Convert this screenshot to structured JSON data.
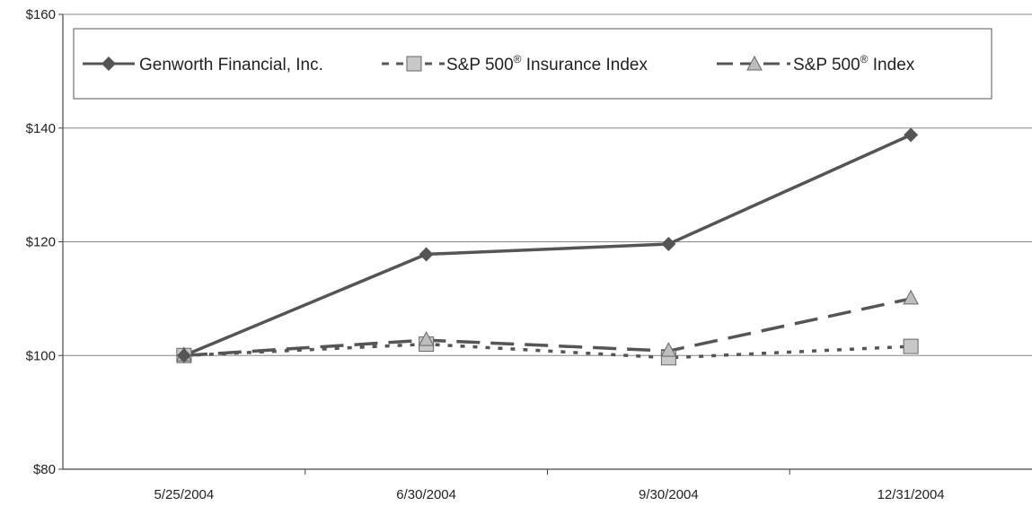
{
  "chart_data": {
    "type": "line",
    "title": "",
    "xlabel": "",
    "ylabel": "",
    "categories": [
      "5/25/2004",
      "6/30/2004",
      "9/30/2004",
      "12/31/2004"
    ],
    "y_ticks": [
      "$80",
      "$100",
      "$120",
      "$140",
      "$160"
    ],
    "ylim": [
      80,
      160
    ],
    "grid": "horizontal",
    "legend_position": "top",
    "series": [
      {
        "name": "Genworth Financial, Inc.",
        "values": [
          100,
          117.8,
          119.6,
          138.8
        ],
        "marker": "diamond",
        "line_style": "solid",
        "color": "#555555"
      },
      {
        "name": "S&P 500® Insurance Index",
        "legend_main": "S&P 500",
        "legend_sup": "®",
        "legend_tail": " Insurance Index",
        "values": [
          100,
          102,
          99.6,
          101.6
        ],
        "marker": "square",
        "line_style": "dotted",
        "color": "#555555",
        "marker_fill": "#c8c8c8"
      },
      {
        "name": "S&P 500® Index",
        "legend_main": "S&P 500",
        "legend_sup": "®",
        "legend_tail": " Index",
        "values": [
          100,
          102.7,
          100.8,
          110
        ],
        "marker": "triangle",
        "line_style": "dashed",
        "color": "#555555",
        "marker_fill": "#bdbdbd"
      }
    ]
  }
}
